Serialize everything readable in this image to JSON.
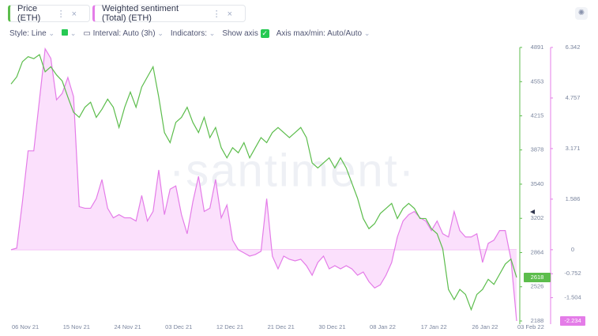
{
  "tabs": [
    "Price (ETH)",
    "Weighted sentiment (Total) (ETH)"
  ],
  "toolbar": [
    "Style: Line",
    "Interval: Auto (3h)",
    "Indicators:",
    "Show axis",
    "Axis max/min: Auto/Auto"
  ],
  "chart_data": {
    "type": "line",
    "watermark": "·santiment·",
    "categories": [
      "06 Nov 21",
      null,
      null,
      null,
      null,
      null,
      null,
      null,
      null,
      "15 Nov 21",
      null,
      null,
      null,
      null,
      null,
      null,
      null,
      null,
      "24 Nov 21",
      null,
      null,
      null,
      null,
      null,
      null,
      null,
      null,
      "03 Dec 21",
      null,
      null,
      null,
      null,
      null,
      null,
      null,
      null,
      "12 Dec 21",
      null,
      null,
      null,
      null,
      null,
      null,
      null,
      null,
      "21 Dec 21",
      null,
      null,
      null,
      null,
      null,
      null,
      null,
      null,
      "30 Dec 21",
      null,
      null,
      null,
      null,
      null,
      null,
      null,
      null,
      "08 Jan 22",
      null,
      null,
      null,
      null,
      null,
      null,
      null,
      null,
      "17 Jan 22",
      null,
      null,
      null,
      null,
      null,
      null,
      null,
      null,
      "26 Jan 22",
      null,
      null,
      null,
      null,
      null,
      null,
      null,
      "03 Feb 22"
    ],
    "series": [
      {
        "name": "Price (ETH)",
        "color": "#5cbd4c",
        "values": [
          4530,
          4600,
          4750,
          4800,
          4780,
          4820,
          4650,
          4700,
          4620,
          4560,
          4400,
          4250,
          4200,
          4300,
          4350,
          4200,
          4280,
          4380,
          4300,
          4100,
          4300,
          4450,
          4300,
          4500,
          4600,
          4700,
          4400,
          4050,
          3950,
          4150,
          4200,
          4300,
          4150,
          4050,
          4200,
          4000,
          4100,
          3900,
          3800,
          3900,
          3850,
          3950,
          3800,
          3900,
          4000,
          3950,
          4050,
          4100,
          4050,
          4000,
          4050,
          4100,
          4000,
          3750,
          3700,
          3750,
          3800,
          3700,
          3800,
          3700,
          3550,
          3400,
          3200,
          3100,
          3150,
          3250,
          3300,
          3350,
          3200,
          3300,
          3350,
          3300,
          3200,
          3200,
          3100,
          3050,
          2900,
          2500,
          2400,
          2500,
          2450,
          2300,
          2450,
          2500,
          2600,
          2550,
          2650,
          2750,
          2800,
          2618
        ]
      },
      {
        "name": "Weighted sentiment (Total) (ETH)",
        "color": "#e47ce8",
        "fill": "#fbe0fc",
        "axis": "y2",
        "values": [
          0,
          0.05,
          1.5,
          3.1,
          3.1,
          4.7,
          6.3,
          6.0,
          4.7,
          4.9,
          5.4,
          4.8,
          1.35,
          1.3,
          1.3,
          1.6,
          2.2,
          1.3,
          1.0,
          1.1,
          1.0,
          1.0,
          0.9,
          1.7,
          0.9,
          1.2,
          2.5,
          1.1,
          1.9,
          2.0,
          1.1,
          0.5,
          1.5,
          2.3,
          1.2,
          1.3,
          2.2,
          1.0,
          1.4,
          0.3,
          0,
          -0.1,
          -0.2,
          -0.15,
          -0.05,
          1.6,
          -0.2,
          -0.6,
          -0.2,
          -0.3,
          -0.35,
          -0.3,
          -0.5,
          -0.8,
          -0.4,
          -0.2,
          -0.6,
          -0.5,
          -0.6,
          -0.5,
          -0.6,
          -0.8,
          -0.7,
          -1.0,
          -1.2,
          -1.1,
          -0.8,
          -0.4,
          0.4,
          0.9,
          1.1,
          1.2,
          1.0,
          0.9,
          0.6,
          0.9,
          0.5,
          0.4,
          1.2,
          0.6,
          0.4,
          0.4,
          0.5,
          -0.4,
          0.2,
          0.3,
          0.6,
          0.6,
          -0.3,
          -2.234
        ]
      }
    ],
    "ylim": [
      2188,
      4891
    ],
    "yticks": [
      2188,
      2526,
      2864,
      3202,
      3540,
      3878,
      4215,
      4553,
      4891
    ],
    "y2lim": [
      -2.234,
      6.342
    ],
    "y2ticks": [
      -1.504,
      -0.752,
      0,
      1.586,
      3.171,
      4.757,
      6.342
    ]
  }
}
